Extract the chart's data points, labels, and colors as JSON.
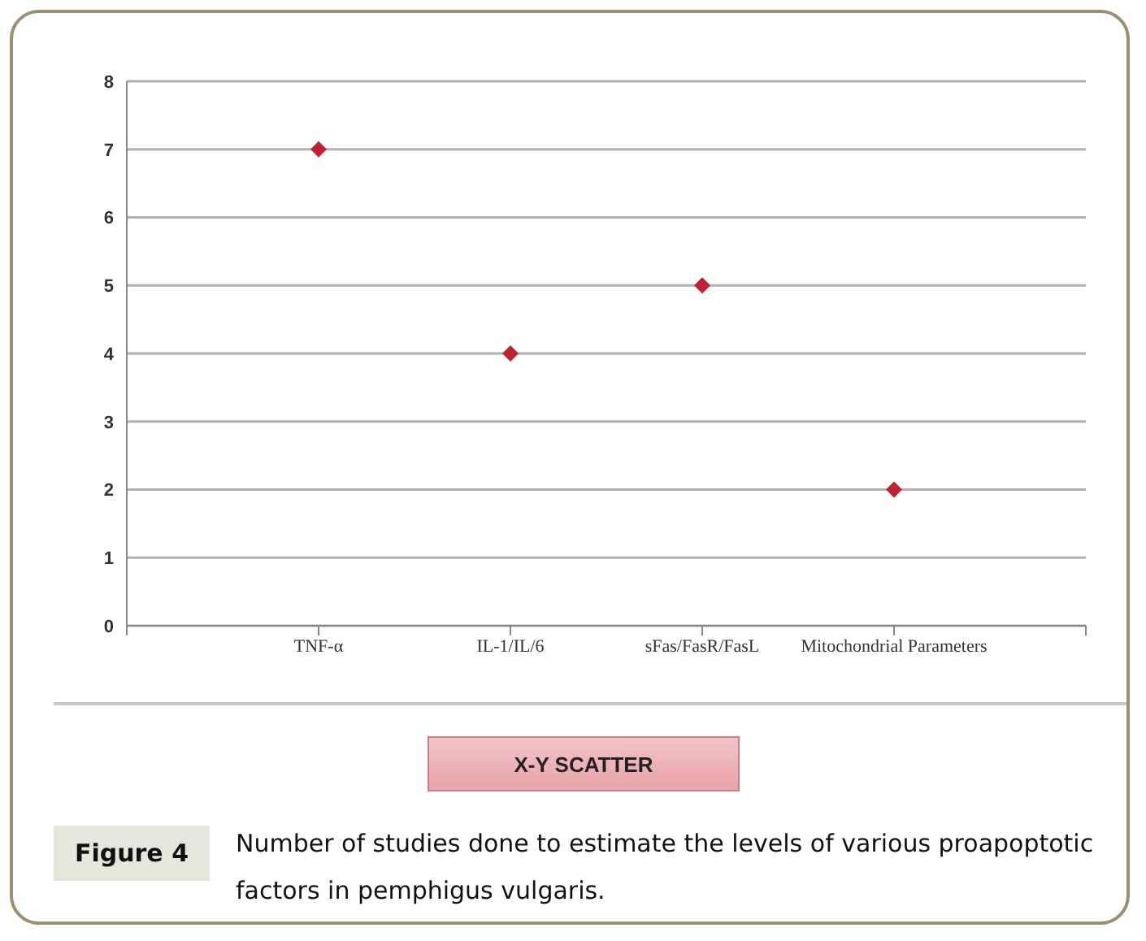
{
  "chart_data": {
    "type": "scatter",
    "categories": [
      "TNF-α",
      "IL-1/IL/6",
      "sFas/FasR/FasL",
      "Mitochondrial Parameters"
    ],
    "values": [
      7,
      4,
      5,
      2
    ],
    "color": "#c0202f",
    "marker": "diamond",
    "ylim": [
      0,
      8
    ],
    "yticks": [
      0,
      1,
      2,
      3,
      4,
      5,
      6,
      7,
      8
    ],
    "grid": "y",
    "annotations": [
      "X-Y SCATTER",
      "Figure 4",
      "Number of studies done to estimate the levels of various proapoptotic factors in pemphigus vulgaris."
    ]
  }
}
